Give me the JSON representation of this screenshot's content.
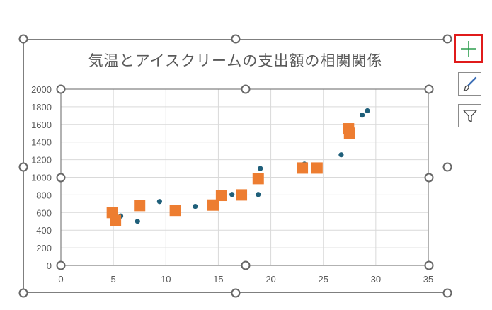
{
  "chart_data": {
    "type": "scatter",
    "title": "気温とアイスクリームの支出額の相関関係",
    "xlabel": "",
    "ylabel": "",
    "xlim": [
      0,
      35
    ],
    "ylim": [
      0,
      2000
    ],
    "x_ticks": [
      0,
      5,
      10,
      15,
      20,
      25,
      30,
      35
    ],
    "y_ticks": [
      0,
      200,
      400,
      600,
      800,
      1000,
      1200,
      1400,
      1600,
      1800,
      2000
    ],
    "grid": true,
    "legend": "none",
    "series": [
      {
        "marker": "circle",
        "color": "#1f5f7a",
        "points": [
          [
            5.7,
            560
          ],
          [
            7.3,
            500
          ],
          [
            9.4,
            725
          ],
          [
            12.8,
            670
          ],
          [
            14.5,
            700
          ],
          [
            16.3,
            805
          ],
          [
            18.8,
            805
          ],
          [
            19.0,
            1100
          ],
          [
            23.2,
            1150
          ],
          [
            26.7,
            1255
          ],
          [
            28.7,
            1705
          ],
          [
            29.2,
            1755
          ]
        ]
      },
      {
        "marker": "square",
        "color": "#ed7d31",
        "points": [
          [
            4.9,
            600
          ],
          [
            5.2,
            510
          ],
          [
            7.5,
            680
          ],
          [
            10.9,
            625
          ],
          [
            14.5,
            685
          ],
          [
            15.3,
            795
          ],
          [
            17.2,
            800
          ],
          [
            18.8,
            985
          ],
          [
            23.0,
            1105
          ],
          [
            24.4,
            1105
          ],
          [
            27.4,
            1550
          ],
          [
            27.5,
            1500
          ]
        ]
      }
    ]
  },
  "side_buttons": [
    {
      "name": "chart-elements-button",
      "icon": "plus-icon",
      "selected": true
    },
    {
      "name": "chart-styles-button",
      "icon": "brush-icon",
      "selected": false
    },
    {
      "name": "chart-filters-button",
      "icon": "filter-icon",
      "selected": false
    }
  ],
  "colors": {
    "plus": "#2e9e4f",
    "selected_border": "#e01b1b",
    "handle": "#666666"
  }
}
